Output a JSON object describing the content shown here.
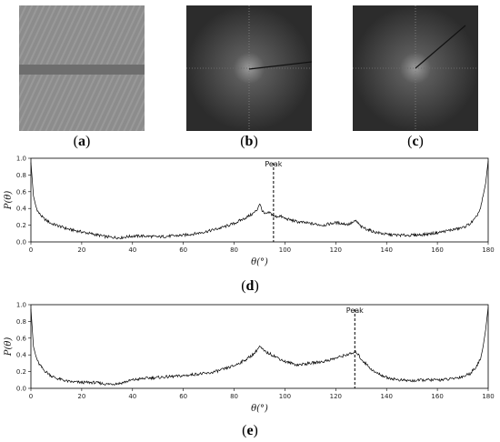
{
  "figure": {
    "panels": [
      {
        "id": "a",
        "label": "a",
        "caption_prefix": "(",
        "caption_suffix": ")"
      },
      {
        "id": "b",
        "label": "b",
        "caption_prefix": "(",
        "caption_suffix": ")"
      },
      {
        "id": "c",
        "label": "c",
        "caption_prefix": "(",
        "caption_suffix": ")"
      },
      {
        "id": "d",
        "label": "d",
        "caption_prefix": "(",
        "caption_suffix": ")"
      },
      {
        "id": "e",
        "label": "e",
        "caption_prefix": "(",
        "caption_suffix": ")"
      }
    ]
  },
  "chart_data": [
    {
      "id": "d",
      "type": "line",
      "xlabel": "θ(°)",
      "ylabel": "P(θ)",
      "xlim": [
        0,
        180
      ],
      "ylim": [
        0,
        1.0
      ],
      "xticks": [
        0,
        20,
        40,
        60,
        80,
        100,
        120,
        140,
        160,
        180
      ],
      "yticks": [
        0.0,
        0.2,
        0.4,
        0.6,
        0.8,
        1.0
      ],
      "ytick_labels": [
        "0.0",
        "0.2",
        "0.4",
        "0.6",
        "0.8",
        "1.0"
      ],
      "peak": {
        "x": 95.5,
        "label": "Peak"
      },
      "line_color": "#000000",
      "x": [
        0,
        1,
        2,
        3,
        5,
        8,
        10,
        15,
        20,
        25,
        30,
        35,
        40,
        45,
        50,
        55,
        60,
        65,
        70,
        75,
        80,
        84,
        87,
        89,
        90,
        91,
        92,
        94,
        96,
        98,
        100,
        105,
        110,
        115,
        120,
        125,
        128,
        130,
        135,
        140,
        145,
        150,
        155,
        160,
        165,
        170,
        173,
        175,
        177,
        178,
        179,
        180
      ],
      "y": [
        0.95,
        0.55,
        0.42,
        0.35,
        0.28,
        0.22,
        0.2,
        0.15,
        0.12,
        0.09,
        0.06,
        0.05,
        0.07,
        0.07,
        0.06,
        0.07,
        0.08,
        0.1,
        0.13,
        0.17,
        0.22,
        0.28,
        0.33,
        0.38,
        0.46,
        0.38,
        0.33,
        0.35,
        0.3,
        0.31,
        0.28,
        0.24,
        0.22,
        0.2,
        0.23,
        0.21,
        0.25,
        0.18,
        0.12,
        0.09,
        0.08,
        0.08,
        0.09,
        0.11,
        0.14,
        0.17,
        0.22,
        0.28,
        0.4,
        0.55,
        0.7,
        0.97
      ]
    },
    {
      "id": "e",
      "type": "line",
      "xlabel": "θ(°)",
      "ylabel": "P(θ)",
      "xlim": [
        0,
        180
      ],
      "ylim": [
        0,
        1.0
      ],
      "xticks": [
        0,
        20,
        40,
        60,
        80,
        100,
        120,
        140,
        160,
        180
      ],
      "yticks": [
        0.0,
        0.2,
        0.4,
        0.6,
        0.8,
        1.0
      ],
      "ytick_labels": [
        "0.0",
        "0.2",
        "0.4",
        "0.6",
        "0.8",
        "1.0"
      ],
      "peak": {
        "x": 127.5,
        "label": "Peak"
      },
      "line_color": "#000000",
      "x": [
        0,
        1,
        2,
        3,
        5,
        8,
        10,
        15,
        20,
        25,
        30,
        35,
        40,
        45,
        50,
        55,
        60,
        65,
        70,
        75,
        80,
        85,
        88,
        90,
        92,
        95,
        100,
        105,
        110,
        115,
        120,
        124,
        127,
        128,
        130,
        135,
        140,
        145,
        150,
        155,
        160,
        165,
        170,
        173,
        175,
        177,
        178,
        179,
        180
      ],
      "y": [
        0.95,
        0.5,
        0.38,
        0.3,
        0.22,
        0.15,
        0.12,
        0.08,
        0.07,
        0.07,
        0.05,
        0.06,
        0.1,
        0.12,
        0.13,
        0.14,
        0.15,
        0.17,
        0.18,
        0.22,
        0.27,
        0.35,
        0.42,
        0.5,
        0.44,
        0.4,
        0.32,
        0.28,
        0.3,
        0.32,
        0.36,
        0.4,
        0.42,
        0.44,
        0.35,
        0.2,
        0.13,
        0.1,
        0.09,
        0.1,
        0.1,
        0.11,
        0.14,
        0.18,
        0.25,
        0.35,
        0.5,
        0.7,
        0.97
      ]
    }
  ]
}
